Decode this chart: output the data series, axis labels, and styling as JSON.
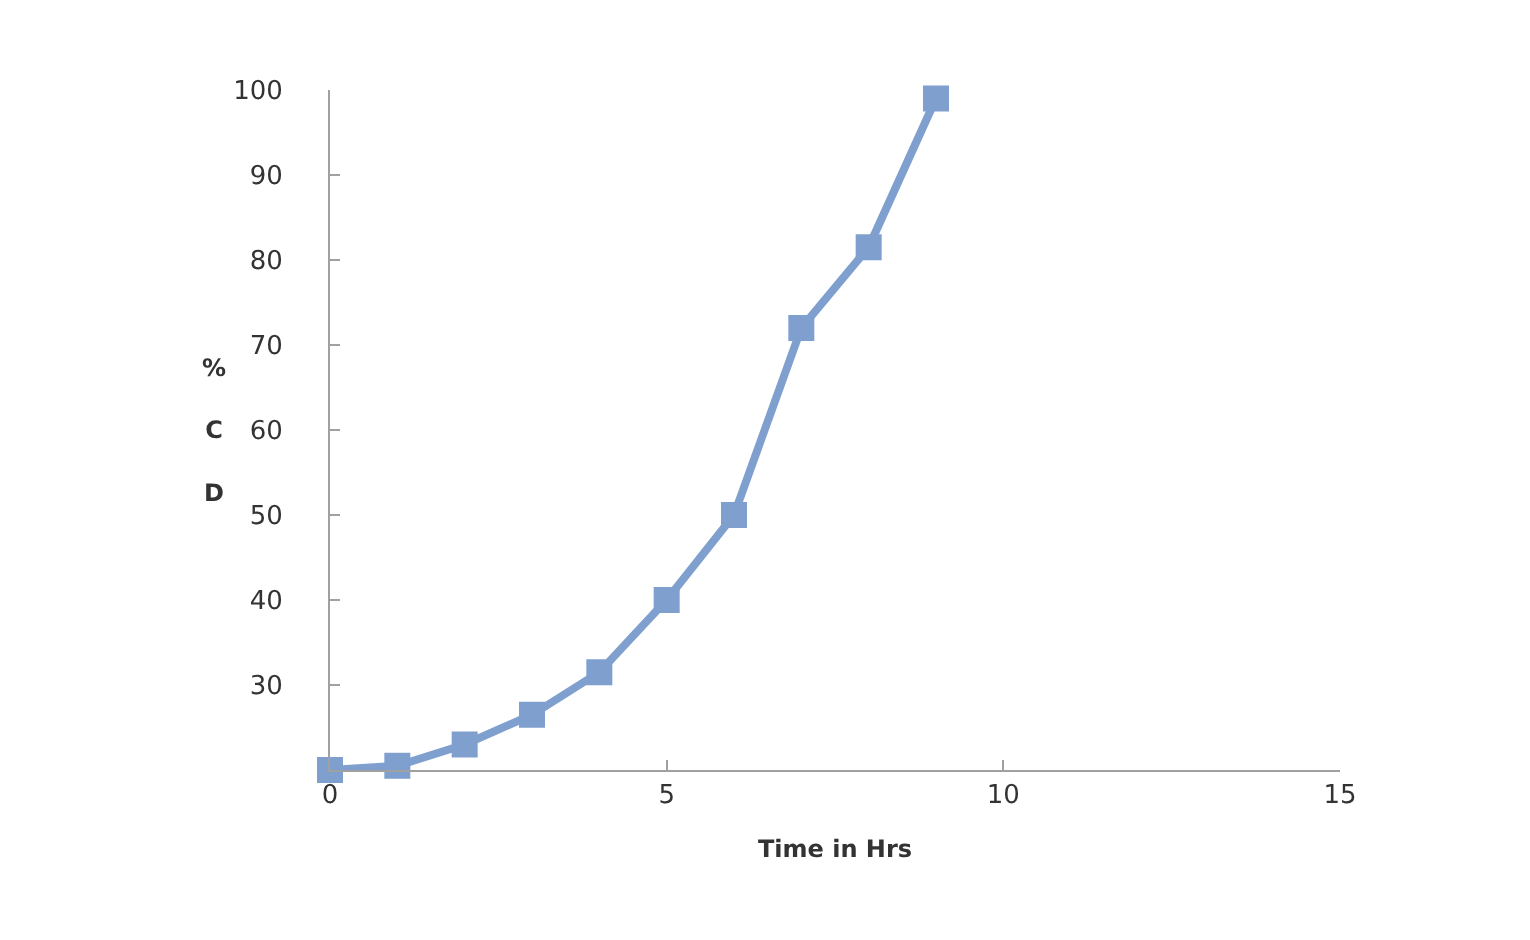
{
  "chart_data": {
    "type": "line",
    "xlabel": "Time in Hrs",
    "ylabel": "%\nC\nD",
    "x": [
      0,
      1,
      2,
      3,
      4,
      5,
      6,
      7,
      8,
      9
    ],
    "series": [
      {
        "color": "#7f9fcf",
        "values": [
          20,
          20.5,
          23,
          26.5,
          31.5,
          40,
          50,
          72,
          81.5,
          99
        ]
      }
    ],
    "xlim": [
      0,
      15
    ],
    "xticks": [
      0,
      5,
      10,
      15
    ],
    "ylim": [
      20,
      100
    ],
    "yticks": [
      30,
      40,
      50,
      60,
      70,
      80,
      90,
      100
    ],
    "marker": "square",
    "line_style": "solid"
  }
}
